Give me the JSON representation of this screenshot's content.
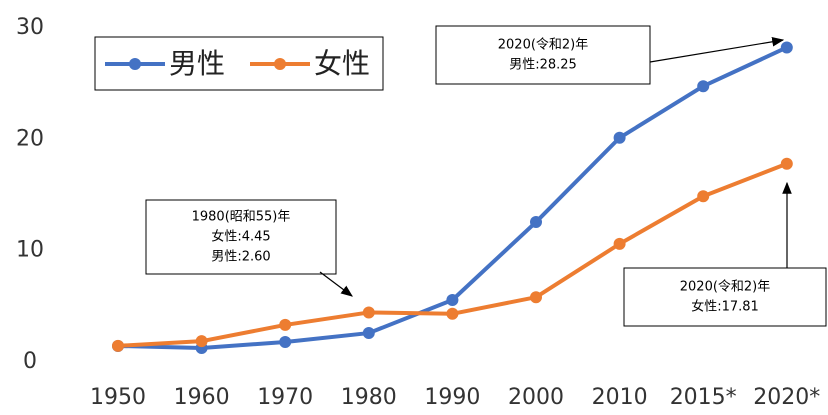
{
  "chart_data": {
    "type": "line",
    "categories": [
      "1950",
      "1960",
      "1970",
      "1980",
      "1990",
      "2000",
      "2010",
      "2015*",
      "2020*"
    ],
    "series": [
      {
        "name": "男性",
        "color": "#4472c4",
        "values": [
          1.44,
          1.26,
          1.8,
          2.6,
          5.57,
          12.57,
          20.14,
          24.77,
          28.25
        ]
      },
      {
        "name": "女性",
        "color": "#ed7d31",
        "values": [
          1.45,
          1.87,
          3.33,
          4.45,
          4.33,
          5.82,
          10.61,
          14.89,
          17.81
        ]
      }
    ],
    "ylim": [
      0,
      30
    ],
    "yticks": [
      0,
      10,
      20,
      30
    ],
    "grid": false,
    "annotations": [
      {
        "lines": [
          "2020(令和2)年",
          "男性:28.25"
        ]
      },
      {
        "lines": [
          "1980(昭和55)年",
          "女性:4.45",
          "男性:2.60"
        ]
      },
      {
        "lines": [
          "2020(令和2)年",
          "女性:17.81"
        ]
      }
    ]
  }
}
